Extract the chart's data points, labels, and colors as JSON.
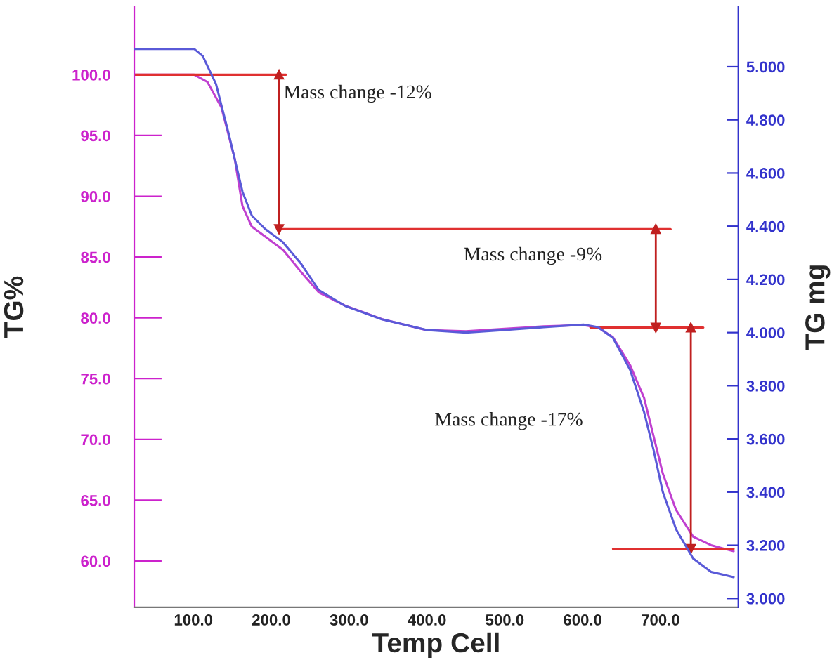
{
  "chart_data": {
    "type": "line",
    "xlabel": "Temp Cell",
    "ylabel": "TG%",
    "y2label": "TG mg",
    "xlim": [
      24,
      800
    ],
    "xticks": [
      {
        "value": 100,
        "label": "100.0"
      },
      {
        "value": 200,
        "label": "200.0"
      },
      {
        "value": 300,
        "label": "300.0"
      },
      {
        "value": 400,
        "label": "400.0"
      },
      {
        "value": 500,
        "label": "500.0"
      },
      {
        "value": 600,
        "label": "600.0"
      },
      {
        "value": 700,
        "label": "700.0"
      }
    ],
    "ylim": [
      56.2,
      105.6
    ],
    "yticks": [
      {
        "value": 60,
        "label": "60.0"
      },
      {
        "value": 65,
        "label": "65.0"
      },
      {
        "value": 70,
        "label": "70.0"
      },
      {
        "value": 75,
        "label": "75.0"
      },
      {
        "value": 80,
        "label": "80.0"
      },
      {
        "value": 85,
        "label": "85.0"
      },
      {
        "value": 90,
        "label": "90.0"
      },
      {
        "value": 95,
        "label": "95.0"
      },
      {
        "value": 100,
        "label": "100.0"
      }
    ],
    "y2lim": [
      2.967,
      5.226
    ],
    "y2ticks": [
      {
        "value": 3.0,
        "label": "3.000"
      },
      {
        "value": 3.2,
        "label": "3.200"
      },
      {
        "value": 3.4,
        "label": "3.400"
      },
      {
        "value": 3.6,
        "label": "3.600"
      },
      {
        "value": 3.8,
        "label": "3.800"
      },
      {
        "value": 4.0,
        "label": "4.000"
      },
      {
        "value": 4.2,
        "label": "4.200"
      },
      {
        "value": 4.4,
        "label": "4.400"
      },
      {
        "value": 4.6,
        "label": "4.600"
      },
      {
        "value": 4.8,
        "label": "4.800"
      },
      {
        "value": 5.0,
        "label": "5.000"
      }
    ],
    "grid": false,
    "series": [
      {
        "axis": "y",
        "color": "#c040d0",
        "marker": "none",
        "x": [
          24,
          60,
          101,
          118,
          136,
          153,
          163,
          175,
          192,
          215,
          238,
          261,
          295,
          342,
          399,
          450,
          500,
          550,
          601,
          620,
          639,
          661,
          679,
          691,
          703,
          720,
          742,
          765,
          794
        ],
        "values": [
          100.0,
          100.0,
          100.0,
          99.4,
          97.3,
          93.1,
          89.2,
          87.5,
          86.7,
          85.6,
          83.8,
          82.1,
          81.0,
          79.9,
          79.0,
          78.9,
          79.1,
          79.3,
          79.4,
          79.2,
          78.4,
          76.1,
          73.4,
          70.3,
          67.2,
          64.2,
          62.0,
          61.3,
          60.8
        ]
      },
      {
        "axis": "y2",
        "color": "#5a5ad8",
        "marker": "none",
        "x": [
          24,
          60,
          101,
          112,
          129,
          146,
          163,
          175,
          192,
          215,
          238,
          261,
          295,
          342,
          399,
          450,
          500,
          550,
          601,
          620,
          639,
          661,
          679,
          691,
          703,
          720,
          742,
          765,
          794
        ],
        "values": [
          5.067,
          5.067,
          5.067,
          5.04,
          4.935,
          4.74,
          4.53,
          4.44,
          4.39,
          4.34,
          4.26,
          4.16,
          4.1,
          4.05,
          4.01,
          4.0,
          4.01,
          4.02,
          4.03,
          4.02,
          3.98,
          3.86,
          3.7,
          3.56,
          3.4,
          3.26,
          3.15,
          3.1,
          3.08
        ]
      },
      {
        "axis": "y",
        "color": "#e03030",
        "marker": "none",
        "x": [
          24,
          219
        ],
        "values": [
          100.0,
          100.0
        ]
      },
      {
        "axis": "y",
        "color": "#e03030",
        "marker": "none",
        "x": [
          215,
          713
        ],
        "values": [
          87.3,
          87.3
        ]
      },
      {
        "axis": "y",
        "color": "#e03030",
        "marker": "none",
        "x": [
          610,
          755
        ],
        "values": [
          79.2,
          79.2
        ]
      },
      {
        "axis": "y",
        "color": "#e03030",
        "marker": "none",
        "x": [
          639,
          794
        ],
        "values": [
          61.0,
          61.0
        ]
      },
      {
        "axis": "y",
        "color": "#c02020",
        "marker": "triangle",
        "x": [
          210,
          210
        ],
        "values": [
          100.0,
          87.3
        ]
      },
      {
        "axis": "y",
        "color": "#c02020",
        "marker": "triangle",
        "x": [
          694,
          694
        ],
        "values": [
          87.3,
          79.2
        ]
      },
      {
        "axis": "y",
        "color": "#c02020",
        "marker": "triangle",
        "x": [
          739,
          739
        ],
        "values": [
          79.2,
          61.0
        ]
      }
    ],
    "annotations": [
      "Mass change -12%",
      "Mass change -9%",
      "Mass change -17%"
    ]
  }
}
